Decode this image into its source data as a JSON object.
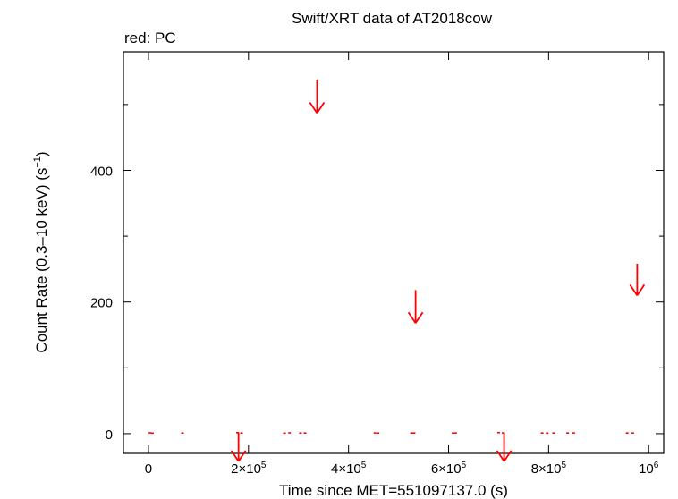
{
  "chart_data": {
    "type": "scatter",
    "title": "Swift/XRT data of AT2018cow",
    "subtitle": "red: PC",
    "xlabel": "Time since MET=551097137.0 (s)",
    "ylabel_main": "Count Rate (0.3–10 keV) (s",
    "ylabel_sup": "−1",
    "ylabel_tail": ")",
    "xlim": [
      -50000,
      1030000
    ],
    "ylim": [
      -30,
      580
    ],
    "x_ticks": [
      {
        "value": 0,
        "base": "0",
        "exp": ""
      },
      {
        "value": 200000,
        "base": "2×10",
        "exp": "5"
      },
      {
        "value": 400000,
        "base": "4×10",
        "exp": "5"
      },
      {
        "value": 600000,
        "base": "6×10",
        "exp": "5"
      },
      {
        "value": 800000,
        "base": "8×10",
        "exp": "5"
      },
      {
        "value": 1000000,
        "base": "10",
        "exp": "6"
      }
    ],
    "y_ticks": [
      {
        "value": 0,
        "label": "0"
      },
      {
        "value": 200,
        "label": "200"
      },
      {
        "value": 400,
        "label": "400"
      }
    ],
    "y_minor_ticks": [
      100,
      300,
      500
    ],
    "series_color": "#ff0000",
    "points": [
      {
        "x": 3000,
        "y": 1.2,
        "xerr": 1500
      },
      {
        "x": 8000,
        "y": 0.8,
        "xerr": 1200
      },
      {
        "x": 68000,
        "y": 1.0,
        "xerr": 1000
      },
      {
        "x": 178000,
        "y": 1.5,
        "xerr": 1500
      },
      {
        "x": 186000,
        "y": 1.0,
        "xerr": 1200
      },
      {
        "x": 272000,
        "y": 0.8,
        "xerr": 1500
      },
      {
        "x": 282000,
        "y": 1.2,
        "xerr": 1200
      },
      {
        "x": 304000,
        "y": 1.0,
        "xerr": 1500
      },
      {
        "x": 313000,
        "y": 1.0,
        "xerr": 1200
      },
      {
        "x": 453000,
        "y": 1.1,
        "xerr": 1400
      },
      {
        "x": 459000,
        "y": 0.9,
        "xerr": 1200
      },
      {
        "x": 526000,
        "y": 1.0,
        "xerr": 1500
      },
      {
        "x": 531000,
        "y": 1.0,
        "xerr": 1200
      },
      {
        "x": 609000,
        "y": 0.9,
        "xerr": 1200
      },
      {
        "x": 614000,
        "y": 1.1,
        "xerr": 1000
      },
      {
        "x": 700000,
        "y": 1.6,
        "xerr": 1500
      },
      {
        "x": 709000,
        "y": 1.0,
        "xerr": 1200
      },
      {
        "x": 787000,
        "y": 1.0,
        "xerr": 1400
      },
      {
        "x": 797000,
        "y": 0.8,
        "xerr": 1200
      },
      {
        "x": 810000,
        "y": 1.0,
        "xerr": 1200
      },
      {
        "x": 838000,
        "y": 1.0,
        "xerr": 1500
      },
      {
        "x": 850000,
        "y": 1.1,
        "xerr": 1200
      },
      {
        "x": 957000,
        "y": 1.0,
        "xerr": 1500
      },
      {
        "x": 968000,
        "y": 1.0,
        "xerr": 1200
      }
    ],
    "upper_limits": [
      {
        "x": 337000,
        "y_top": 538,
        "y_tip": 487
      },
      {
        "x": 534000,
        "y_top": 218,
        "y_tip": 168
      },
      {
        "x": 977000,
        "y_top": 258,
        "y_tip": 210
      },
      {
        "x": 180000,
        "y_top": 2,
        "y_tip": -42
      },
      {
        "x": 711000,
        "y_top": 2,
        "y_tip": -42
      }
    ]
  }
}
